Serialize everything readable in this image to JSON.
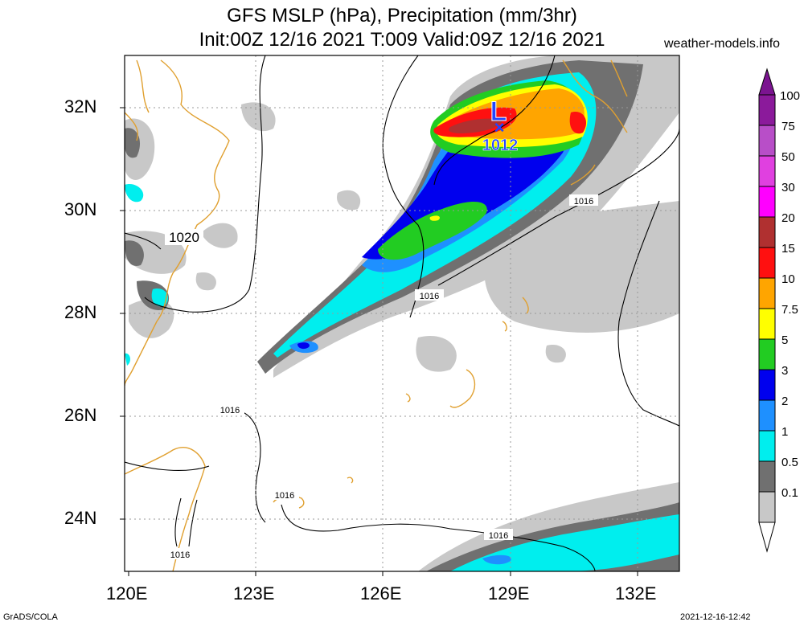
{
  "header": {
    "title_line1": "GFS MSLP (hPa), Precipitation (mm/3hr)",
    "title_line2": "Init:00Z 12/16 2021 T:009 Valid:09Z 12/16 2021",
    "site": "weather-models.info"
  },
  "map": {
    "lat_labels": [
      "32N",
      "30N",
      "28N",
      "26N",
      "24N"
    ],
    "lon_labels": [
      "120E",
      "123E",
      "126E",
      "129E",
      "132E"
    ],
    "low_marker": "L",
    "low_cross": "×",
    "low_value": "1012",
    "isobar_labels": [
      "1020",
      "1016",
      "1016",
      "1016",
      "1016",
      "1016",
      "1016"
    ],
    "colors": {
      "coastline": "#e0a030",
      "isobar": "#000000",
      "grid": "#999999",
      "low_marker": "#2244ff"
    }
  },
  "colorbar": {
    "labels": [
      "100",
      "75",
      "50",
      "30",
      "20",
      "15",
      "10",
      "7.5",
      "5",
      "3",
      "2",
      "1",
      "0.5",
      "0.1"
    ],
    "colors": [
      "#8b1a9b",
      "#b84ec8",
      "#e040e0",
      "#ff00ff",
      "#b03030",
      "#ff1010",
      "#ffa500",
      "#ffff00",
      "#22cc22",
      "#0000ee",
      "#1e90ff",
      "#00eeee",
      "#707070",
      "#c8c8c8"
    ]
  },
  "footer": {
    "left": "GrADS/COLA",
    "right": "2021-12-16-12:42"
  }
}
